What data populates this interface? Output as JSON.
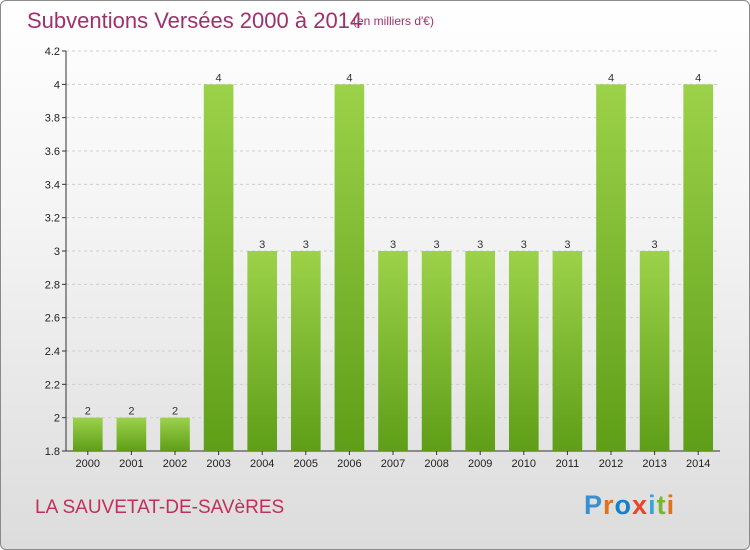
{
  "header": {
    "title": "Subventions Versées 2000 à 2014",
    "subtitle": "(en milliers d'€)"
  },
  "footer": {
    "commune": "LA SAUVETAT-DE-SAVèRES",
    "logo_text": "Proxiti",
    "logo_colors": [
      "#3a8fd0",
      "#e0711e",
      "#1a7fc8",
      "#e8442a",
      "#3aa6d8",
      "#7bb52e",
      "#e0711e"
    ]
  },
  "colors": {
    "bar_light": "#9cd24a",
    "bar_dark": "#5f9e18",
    "title": "#a0306b",
    "commune": "#c0305a",
    "grid": "#cfcfcf"
  },
  "chart_data": {
    "type": "bar",
    "title": "Subventions Versées 2000 à 2014",
    "subtitle": "(en milliers d'€)",
    "categories": [
      "2000",
      "2001",
      "2002",
      "2003",
      "2004",
      "2005",
      "2006",
      "2007",
      "2008",
      "2009",
      "2010",
      "2011",
      "2012",
      "2013",
      "2014"
    ],
    "values": [
      2,
      2,
      2,
      4,
      3,
      3,
      4,
      3,
      3,
      3,
      3,
      3,
      4,
      3,
      4
    ],
    "ylim": [
      1.8,
      4.2
    ],
    "yticks": [
      "1.8",
      "2",
      "2.2",
      "2.4",
      "2.6",
      "2.8",
      "3",
      "3.2",
      "3.4",
      "3.6",
      "3.8",
      "4",
      "4.2"
    ],
    "grid": "horizontal dashed",
    "legend": "none"
  }
}
